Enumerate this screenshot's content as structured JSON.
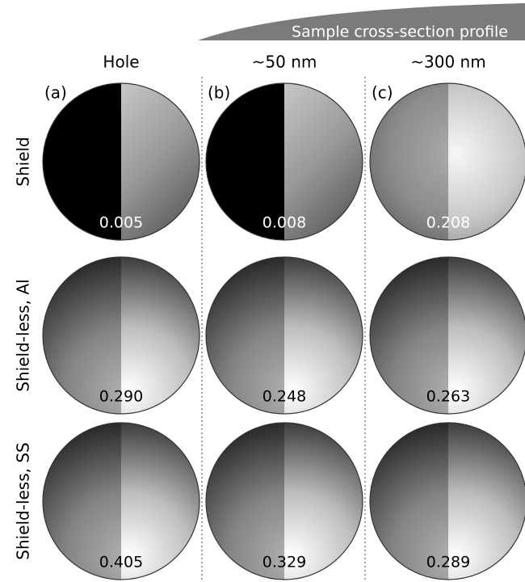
{
  "banner": "Sample cross-section profile",
  "columns": [
    {
      "label": "Hole",
      "panel": "(a)"
    },
    {
      "label": "~50 nm",
      "panel": "(b)"
    },
    {
      "label": "~300 nm",
      "panel": "(c)"
    }
  ],
  "rows": [
    {
      "label": "Shield",
      "cells": [
        "0.005",
        "0.008",
        "0.208"
      ]
    },
    {
      "label": "Shield-less, Al",
      "cells": [
        "0.290",
        "0.248",
        "0.263"
      ]
    },
    {
      "label": "Shield-less, SS",
      "cells": [
        "0.405",
        "0.329",
        "0.289"
      ]
    }
  ]
}
